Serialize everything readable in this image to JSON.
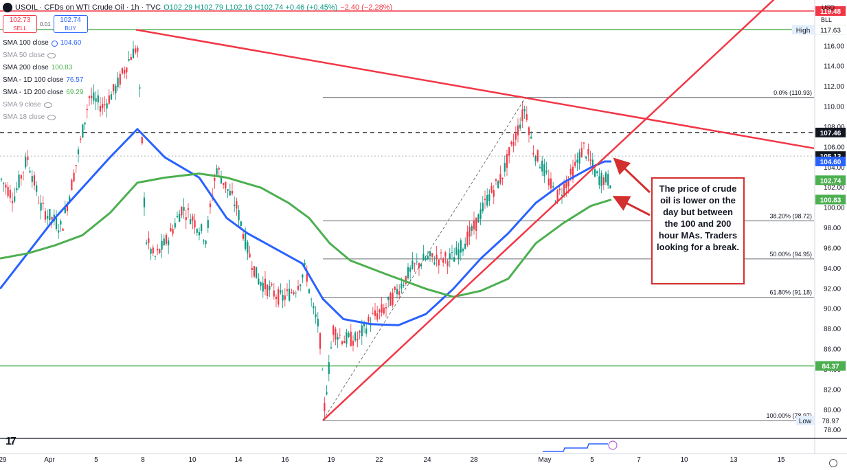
{
  "header": {
    "symbol": "USOIL · CFDs on WTI Crude Oil · 1h · TVC",
    "ohlc": "O102.29 H102.79 L102.16 C102.74 +0.46 (+0.45%)",
    "extra_change": "−2.40 (−2.28%)"
  },
  "trade": {
    "sell_price": "102.73",
    "sell_label": "SELL",
    "spread": "0.01",
    "buy_price": "102.74",
    "buy_label": "BUY"
  },
  "legend": [
    {
      "label": "SMA 100 close",
      "value": "104.60",
      "color": "#2962ff",
      "muted": false,
      "icon": "cycle-icon"
    },
    {
      "label": "SMA 50 close",
      "value": "",
      "color": "#9598a1",
      "muted": true,
      "icon": "eye-off-icon"
    },
    {
      "label": "SMA 200 close",
      "value": "100.83",
      "color": "#4caf50",
      "muted": false,
      "icon": ""
    },
    {
      "label": "SMA - 1D 100 close",
      "value": "76.57",
      "color": "#2962ff",
      "muted": false,
      "icon": ""
    },
    {
      "label": "SMA - 1D 200 close",
      "value": "69.29",
      "color": "#4caf50",
      "muted": false,
      "icon": ""
    },
    {
      "label": "SMA 9 close",
      "value": "",
      "color": "#9598a1",
      "muted": true,
      "icon": "eye-off-icon"
    },
    {
      "label": "SMA 18 close",
      "value": "",
      "color": "#9598a1",
      "muted": true,
      "icon": "eye-off-icon"
    }
  ],
  "currency": "USD",
  "unit": "BLL",
  "annotation": "The price of crude oil is lower on the day but between the 100 and 200 hour MAs.  Traders looking for a break.",
  "chart_data": {
    "type": "line",
    "title": "USOIL · CFDs on WTI Crude Oil · 1h · TVC",
    "ylim": [
      77.0,
      120.5
    ],
    "y_ticks": [
      78,
      80,
      82,
      84,
      86,
      88,
      90,
      92,
      94,
      96,
      98,
      100,
      102,
      104,
      106,
      108,
      110,
      112,
      114,
      116
    ],
    "x_ticks": [
      "29",
      "Apr",
      "5",
      "8",
      "10",
      "14",
      "16",
      "19",
      "22",
      "24",
      "28",
      "May",
      "5",
      "7",
      "10",
      "13",
      "15"
    ],
    "price_labels": [
      {
        "text": "119.48",
        "color": "#f23645",
        "y": 119.48
      },
      {
        "text": "117.63",
        "color": "#4caf50",
        "y": 117.63
      },
      {
        "text": "117.63",
        "color": "#4caf50",
        "y": 117.63,
        "tag": "High"
      },
      {
        "text": "107.46",
        "color": "#131722",
        "y": 107.46
      },
      {
        "text": "105.13",
        "color": "#131722",
        "y": 105.13
      },
      {
        "text": "104.60",
        "color": "#2962ff",
        "y": 104.6
      },
      {
        "text": "102.74",
        "color": "#4caf50",
        "y": 102.74
      },
      {
        "text": "100.83",
        "color": "#4caf50",
        "y": 100.83
      },
      {
        "text": "84.37",
        "color": "#4caf50",
        "y": 84.37
      },
      {
        "text": "78.97",
        "color": "#131722",
        "y": 78.97,
        "tag": "Low"
      }
    ],
    "fib_levels": [
      {
        "label": "0.0% (110.93)",
        "y": 110.93
      },
      {
        "label": "38.20% (98.72)",
        "y": 98.72
      },
      {
        "label": "50.00% (94.95)",
        "y": 94.95
      },
      {
        "label": "61.80% (91.18)",
        "y": 91.18
      },
      {
        "label": "100.00% (78.97)",
        "y": 78.97
      }
    ],
    "horizontal_lines": [
      {
        "y": 119.48,
        "color": "#f23645"
      },
      {
        "y": 117.63,
        "color": "#4caf50"
      },
      {
        "y": 84.37,
        "color": "#4caf50"
      },
      {
        "y": 107.46,
        "color": "#131722",
        "dashed": true
      }
    ],
    "series": [
      {
        "name": "SMA 100 close",
        "color": "#2962ff",
        "points": [
          [
            0,
            92
          ],
          [
            40,
            95.5
          ],
          [
            80,
            99
          ],
          [
            120,
            102
          ],
          [
            160,
            105
          ],
          [
            200,
            107.8
          ],
          [
            240,
            105
          ],
          [
            290,
            103
          ],
          [
            330,
            99
          ],
          [
            360,
            97.5
          ],
          [
            400,
            96
          ],
          [
            440,
            94.5
          ],
          [
            470,
            91
          ],
          [
            500,
            89
          ],
          [
            540,
            88.5
          ],
          [
            580,
            88.4
          ],
          [
            620,
            89.5
          ],
          [
            660,
            92
          ],
          [
            700,
            95
          ],
          [
            740,
            97.5
          ],
          [
            780,
            100.5
          ],
          [
            820,
            102.5
          ],
          [
            860,
            104
          ],
          [
            880,
            104.6
          ],
          [
            890,
            104.6
          ]
        ]
      },
      {
        "name": "SMA 200 close",
        "color": "#4caf50",
        "points": [
          [
            0,
            95
          ],
          [
            40,
            95.5
          ],
          [
            80,
            96.3
          ],
          [
            120,
            97.3
          ],
          [
            160,
            99.5
          ],
          [
            200,
            102.5
          ],
          [
            240,
            103
          ],
          [
            290,
            103.4
          ],
          [
            330,
            103
          ],
          [
            380,
            102
          ],
          [
            420,
            100.5
          ],
          [
            450,
            99
          ],
          [
            480,
            96.5
          ],
          [
            510,
            94.8
          ],
          [
            560,
            93.5
          ],
          [
            620,
            92
          ],
          [
            660,
            91.2
          ],
          [
            700,
            91.8
          ],
          [
            740,
            93
          ],
          [
            780,
            96.5
          ],
          [
            820,
            98.5
          ],
          [
            860,
            100.2
          ],
          [
            890,
            100.83
          ]
        ]
      }
    ],
    "trendlines": [
      {
        "from": [
          198,
          117.63
        ],
        "to": [
          1185,
          105.9
        ],
        "color": "#f23645"
      },
      {
        "from": [
          470,
          78.97
        ],
        "to": [
          1180,
          124
        ],
        "color": "#f23645"
      },
      {
        "from": [
          470,
          78.97
        ],
        "to": [
          765,
          110.93
        ],
        "color": "#555555",
        "dashed": true
      }
    ]
  }
}
